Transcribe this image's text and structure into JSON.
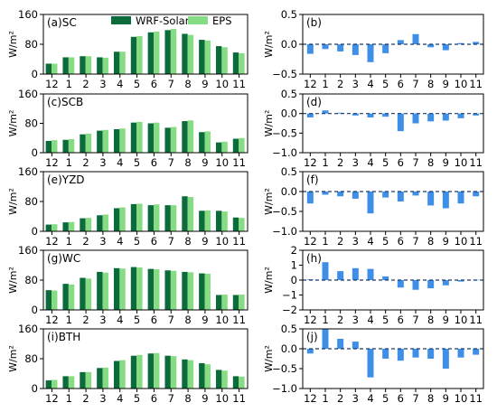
{
  "legend": {
    "placement": "top-right of first panel",
    "items": [
      {
        "name": "WRF-Solar",
        "color": "#0b6b3a"
      },
      {
        "name": "EPS",
        "color": "#86dc83"
      }
    ]
  },
  "colors": {
    "wrf": "#0b6b3a",
    "eps": "#86dc83",
    "diff": "#3f8fe8",
    "zero_line": "#1a3a6a"
  },
  "chart_data": [
    {
      "type": "bar",
      "panel": "(a)SC",
      "ylabel": "W/m²",
      "ylim": [
        0,
        160
      ],
      "yticks": [
        "0",
        "80",
        "160"
      ],
      "categories": [
        "12",
        "1",
        "2",
        "3",
        "4",
        "5",
        "6",
        "7",
        "8",
        "9",
        "10",
        "11"
      ],
      "series": [
        {
          "name": "WRF-Solar",
          "values": [
            28,
            45,
            48,
            45,
            60,
            100,
            112,
            118,
            108,
            92,
            75,
            58
          ]
        },
        {
          "name": "EPS",
          "values": [
            28,
            45,
            48,
            44,
            60,
            102,
            114,
            121,
            105,
            90,
            72,
            56
          ]
        }
      ]
    },
    {
      "type": "bar",
      "panel": "(b)",
      "ylabel": "W/m²",
      "ylim": [
        -0.5,
        0.5
      ],
      "yticks": [
        "−0.5",
        "0.0",
        "0.5"
      ],
      "categories": [
        "12",
        "1",
        "2",
        "3",
        "4",
        "5",
        "6",
        "7",
        "8",
        "9",
        "10",
        "11"
      ],
      "series": [
        {
          "name": "difference",
          "values": [
            -0.16,
            -0.08,
            -0.12,
            -0.18,
            -0.3,
            -0.15,
            0.07,
            0.17,
            -0.05,
            -0.1,
            0.02,
            0.04
          ]
        }
      ]
    },
    {
      "type": "bar",
      "panel": "(c)SCB",
      "ylabel": "W/m²",
      "ylim": [
        0,
        160
      ],
      "yticks": [
        "0",
        "80",
        "160"
      ],
      "categories": [
        "12",
        "1",
        "2",
        "3",
        "4",
        "5",
        "6",
        "7",
        "8",
        "9",
        "10",
        "11"
      ],
      "series": [
        {
          "name": "WRF-Solar",
          "values": [
            32,
            35,
            50,
            60,
            64,
            82,
            80,
            68,
            86,
            56,
            28,
            38
          ]
        },
        {
          "name": "EPS",
          "values": [
            34,
            37,
            52,
            62,
            66,
            84,
            82,
            70,
            88,
            58,
            30,
            40
          ]
        }
      ]
    },
    {
      "type": "bar",
      "panel": "(d)",
      "ylabel": "W/m²",
      "ylim": [
        -1.0,
        0.5
      ],
      "yticks": [
        "−1.0",
        "−0.5",
        "0.0",
        "0.5"
      ],
      "categories": [
        "12",
        "1",
        "2",
        "3",
        "4",
        "5",
        "6",
        "7",
        "8",
        "9",
        "10",
        "11"
      ],
      "series": [
        {
          "name": "difference",
          "values": [
            -0.1,
            0.08,
            0.02,
            -0.05,
            -0.1,
            -0.08,
            -0.45,
            -0.25,
            -0.2,
            -0.18,
            -0.12,
            -0.05
          ]
        }
      ]
    },
    {
      "type": "bar",
      "panel": "(e)YZD",
      "ylabel": "W/m²",
      "ylim": [
        0,
        160
      ],
      "yticks": [
        "0",
        "80",
        "160"
      ],
      "categories": [
        "12",
        "1",
        "2",
        "3",
        "4",
        "5",
        "6",
        "7",
        "8",
        "9",
        "10",
        "11"
      ],
      "series": [
        {
          "name": "WRF-Solar",
          "values": [
            18,
            24,
            35,
            43,
            62,
            73,
            70,
            70,
            94,
            55,
            55,
            37
          ]
        },
        {
          "name": "EPS",
          "values": [
            19,
            25,
            36,
            45,
            64,
            74,
            72,
            70,
            92,
            56,
            53,
            36
          ]
        }
      ]
    },
    {
      "type": "bar",
      "panel": "(f)",
      "ylabel": "W/m²",
      "ylim": [
        -1.0,
        0.5
      ],
      "yticks": [
        "−1.0",
        "−0.5",
        "0.0",
        "0.5"
      ],
      "categories": [
        "12",
        "1",
        "2",
        "3",
        "4",
        "5",
        "6",
        "7",
        "8",
        "9",
        "10",
        "11"
      ],
      "series": [
        {
          "name": "difference",
          "values": [
            -0.3,
            -0.08,
            -0.12,
            -0.18,
            -0.55,
            -0.15,
            -0.25,
            -0.1,
            -0.35,
            -0.42,
            -0.3,
            -0.12
          ]
        }
      ]
    },
    {
      "type": "bar",
      "panel": "(g)WC",
      "ylabel": "W/m²",
      "ylim": [
        0,
        160
      ],
      "yticks": [
        "0",
        "80",
        "160"
      ],
      "categories": [
        "12",
        "1",
        "2",
        "3",
        "4",
        "5",
        "6",
        "7",
        "8",
        "9",
        "10",
        "11"
      ],
      "series": [
        {
          "name": "WRF-Solar",
          "values": [
            53,
            70,
            86,
            102,
            112,
            115,
            110,
            106,
            102,
            98,
            40,
            40
          ]
        },
        {
          "name": "EPS",
          "values": [
            52,
            68,
            84,
            100,
            111,
            114,
            109,
            105,
            101,
            97,
            41,
            41
          ]
        }
      ]
    },
    {
      "type": "bar",
      "panel": "(h)",
      "ylabel": "W/m²",
      "ylim": [
        -2,
        2
      ],
      "yticks": [
        "−2",
        "−1",
        "0",
        "1",
        "2"
      ],
      "categories": [
        "12",
        "1",
        "2",
        "3",
        "4",
        "5",
        "6",
        "7",
        "8",
        "9",
        "10",
        "11"
      ],
      "series": [
        {
          "name": "difference",
          "values": [
            0.05,
            1.2,
            0.6,
            0.8,
            0.75,
            0.25,
            -0.5,
            -0.65,
            -0.55,
            -0.35,
            -0.1,
            0.02
          ]
        }
      ]
    },
    {
      "type": "bar",
      "panel": "(i)BTH",
      "ylabel": "W/m²",
      "ylim": [
        0,
        160
      ],
      "yticks": [
        "0",
        "80",
        "160"
      ],
      "categories": [
        "12",
        "1",
        "2",
        "3",
        "4",
        "5",
        "6",
        "7",
        "8",
        "9",
        "10",
        "11"
      ],
      "series": [
        {
          "name": "WRF-Solar",
          "values": [
            22,
            33,
            44,
            55,
            74,
            88,
            94,
            88,
            78,
            68,
            50,
            33
          ]
        },
        {
          "name": "EPS",
          "values": [
            23,
            33,
            44,
            56,
            76,
            90,
            95,
            87,
            76,
            65,
            48,
            32
          ]
        }
      ]
    },
    {
      "type": "bar",
      "panel": "(j)",
      "ylabel": "W/m²",
      "ylim": [
        -1.0,
        0.5
      ],
      "yticks": [
        "−1.0",
        "−0.5",
        "0.0",
        "0.5"
      ],
      "categories": [
        "12",
        "1",
        "2",
        "3",
        "4",
        "5",
        "6",
        "7",
        "8",
        "9",
        "10",
        "11"
      ],
      "series": [
        {
          "name": "difference",
          "values": [
            -0.12,
            0.5,
            0.25,
            0.18,
            -0.72,
            -0.25,
            -0.3,
            -0.22,
            -0.25,
            -0.5,
            -0.22,
            -0.15
          ]
        }
      ]
    }
  ]
}
